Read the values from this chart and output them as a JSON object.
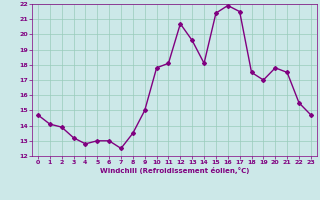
{
  "x": [
    0,
    1,
    2,
    3,
    4,
    5,
    6,
    7,
    8,
    9,
    10,
    11,
    12,
    13,
    14,
    15,
    16,
    17,
    18,
    19,
    20,
    21,
    22,
    23
  ],
  "y": [
    14.7,
    14.1,
    13.9,
    13.2,
    12.8,
    13.0,
    13.0,
    12.5,
    13.5,
    15.0,
    17.8,
    18.1,
    20.7,
    19.6,
    18.1,
    21.4,
    21.9,
    21.5,
    17.5,
    17.0,
    17.8,
    17.5,
    15.5,
    14.7
  ],
  "line_color": "#800080",
  "marker": "D",
  "marker_size": 2.0,
  "line_width": 1.0,
  "bg_color": "#cce8e8",
  "grid_color": "#99ccbb",
  "xlabel": "Windchill (Refroidissement éolien,°C)",
  "xlabel_color": "#800080",
  "tick_color": "#800080",
  "xlim": [
    -0.5,
    23.5
  ],
  "ylim": [
    12,
    22
  ],
  "yticks": [
    12,
    13,
    14,
    15,
    16,
    17,
    18,
    19,
    20,
    21,
    22
  ],
  "xticks": [
    0,
    1,
    2,
    3,
    4,
    5,
    6,
    7,
    8,
    9,
    10,
    11,
    12,
    13,
    14,
    15,
    16,
    17,
    18,
    19,
    20,
    21,
    22,
    23
  ]
}
